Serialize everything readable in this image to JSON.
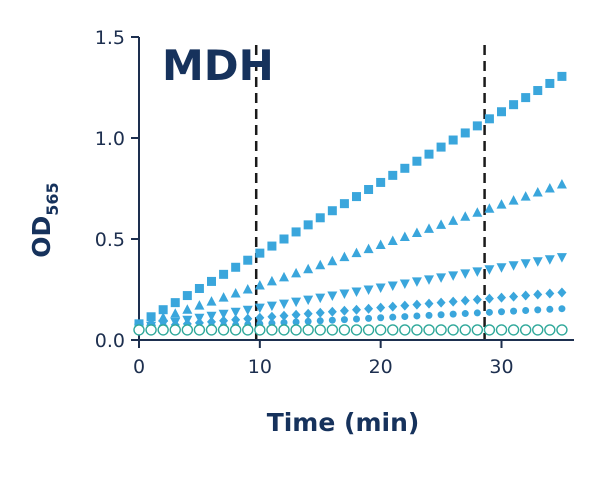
{
  "chart_data": {
    "type": "scatter",
    "title": "MDH",
    "xlabel": "Time (min)",
    "ylabel": "OD",
    "ylabel_subscript": "565",
    "xlim": [
      0,
      36
    ],
    "ylim": [
      0,
      1.5
    ],
    "xticks": [
      0,
      10,
      20,
      30
    ],
    "xtick_labels": [
      "0",
      "10",
      "20",
      "30"
    ],
    "yticks": [
      0.0,
      0.5,
      1.0,
      1.5
    ],
    "ytick_labels": [
      "0.0",
      "0.5",
      "1.0",
      "1.5"
    ],
    "grid": false,
    "legend": false,
    "reference_lines_x": [
      9.7,
      28.6
    ],
    "x": [
      0,
      1,
      2,
      3,
      4,
      5,
      6,
      7,
      8,
      9,
      10,
      11,
      12,
      13,
      14,
      15,
      16,
      17,
      18,
      19,
      20,
      21,
      22,
      23,
      24,
      25,
      26,
      27,
      28,
      29,
      30,
      31,
      32,
      33,
      34,
      35
    ],
    "series": [
      {
        "marker": "square",
        "color": "#3aa6dc",
        "values": [
          0.08,
          0.115,
          0.15,
          0.185,
          0.22,
          0.255,
          0.29,
          0.325,
          0.36,
          0.395,
          0.43,
          0.465,
          0.5,
          0.535,
          0.57,
          0.605,
          0.64,
          0.675,
          0.71,
          0.745,
          0.78,
          0.815,
          0.85,
          0.885,
          0.92,
          0.955,
          0.99,
          1.025,
          1.06,
          1.095,
          1.13,
          1.165,
          1.2,
          1.235,
          1.27,
          1.305
        ]
      },
      {
        "marker": "triangle-up",
        "color": "#3aa6dc",
        "values": [
          0.07,
          0.09,
          0.11,
          0.13,
          0.15,
          0.17,
          0.19,
          0.21,
          0.23,
          0.25,
          0.27,
          0.29,
          0.31,
          0.33,
          0.35,
          0.37,
          0.39,
          0.41,
          0.43,
          0.45,
          0.47,
          0.49,
          0.51,
          0.53,
          0.55,
          0.57,
          0.59,
          0.61,
          0.63,
          0.65,
          0.67,
          0.69,
          0.71,
          0.73,
          0.75,
          0.77
        ]
      },
      {
        "marker": "triangle-down",
        "color": "#3aa6dc",
        "values": [
          0.06,
          0.07,
          0.08,
          0.09,
          0.1,
          0.11,
          0.12,
          0.13,
          0.14,
          0.15,
          0.16,
          0.17,
          0.18,
          0.19,
          0.2,
          0.21,
          0.22,
          0.23,
          0.24,
          0.25,
          0.26,
          0.27,
          0.28,
          0.29,
          0.3,
          0.31,
          0.32,
          0.33,
          0.34,
          0.35,
          0.36,
          0.37,
          0.38,
          0.39,
          0.4,
          0.41
        ]
      },
      {
        "marker": "diamond",
        "color": "#3aa6dc",
        "values": [
          0.06,
          0.065,
          0.07,
          0.075,
          0.08,
          0.085,
          0.09,
          0.095,
          0.1,
          0.105,
          0.11,
          0.115,
          0.12,
          0.125,
          0.13,
          0.135,
          0.14,
          0.145,
          0.15,
          0.155,
          0.16,
          0.165,
          0.17,
          0.175,
          0.18,
          0.185,
          0.19,
          0.195,
          0.2,
          0.205,
          0.21,
          0.215,
          0.22,
          0.225,
          0.23,
          0.235
        ]
      },
      {
        "marker": "circle",
        "color": "#3aa6dc",
        "values": [
          0.05,
          0.053,
          0.056,
          0.059,
          0.062,
          0.065,
          0.068,
          0.071,
          0.074,
          0.077,
          0.08,
          0.083,
          0.086,
          0.089,
          0.092,
          0.095,
          0.098,
          0.101,
          0.104,
          0.107,
          0.11,
          0.113,
          0.116,
          0.119,
          0.122,
          0.125,
          0.128,
          0.131,
          0.134,
          0.137,
          0.14,
          0.143,
          0.146,
          0.149,
          0.152,
          0.155
        ]
      },
      {
        "marker": "open-circle",
        "color": "#2fa89a",
        "values": [
          0.05,
          0.05,
          0.05,
          0.05,
          0.05,
          0.05,
          0.05,
          0.05,
          0.05,
          0.05,
          0.05,
          0.05,
          0.05,
          0.05,
          0.05,
          0.05,
          0.05,
          0.05,
          0.05,
          0.05,
          0.05,
          0.05,
          0.05,
          0.05,
          0.05,
          0.05,
          0.05,
          0.05,
          0.05,
          0.05,
          0.05,
          0.05,
          0.05,
          0.05,
          0.05,
          0.05
        ]
      }
    ]
  }
}
